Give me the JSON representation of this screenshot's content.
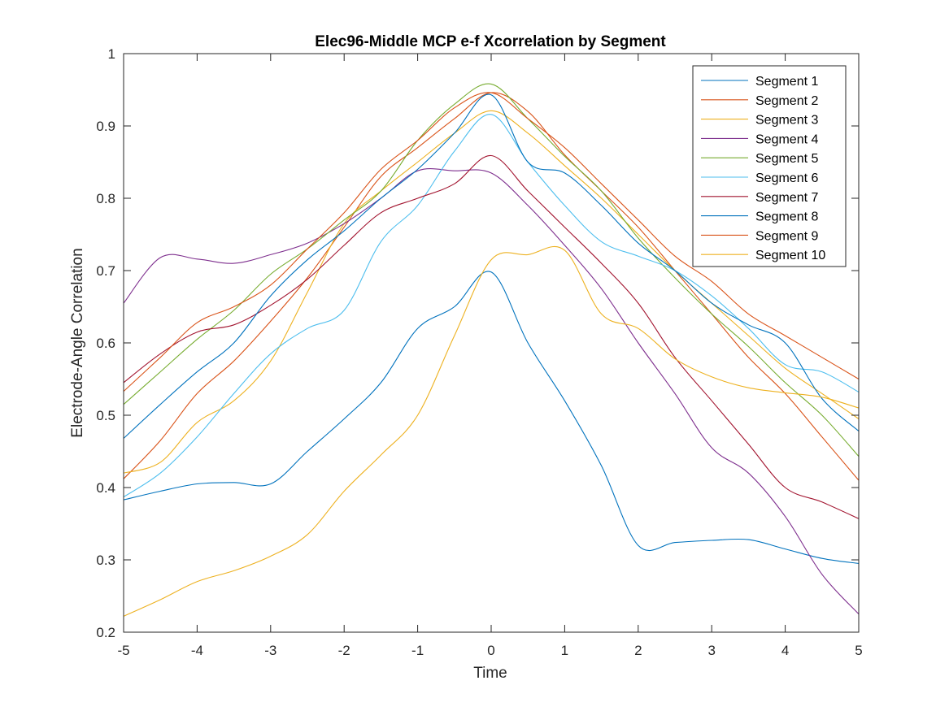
{
  "chart_data": {
    "type": "line",
    "title": "Elec96-Middle MCP e-f Xcorrelation by Segment",
    "xlabel": "Time",
    "ylabel": "Electrode-Angle Correlation",
    "xlim": [
      -5,
      5
    ],
    "ylim": [
      0.2,
      1
    ],
    "xticks": [
      "-5",
      "-4",
      "-3",
      "-2",
      "-1",
      "0",
      "1",
      "2",
      "3",
      "4",
      "5"
    ],
    "yticks": [
      "0.2",
      "0.3",
      "0.4",
      "0.5",
      "0.6",
      "0.7",
      "0.8",
      "0.9",
      "1"
    ],
    "legend_position": "top-right",
    "grid": false,
    "x": [
      -5,
      -4.5,
      -4,
      -3.5,
      -3,
      -2.5,
      -2,
      -1.5,
      -1,
      -0.5,
      0,
      0.5,
      1,
      1.5,
      2,
      2.5,
      3,
      3.5,
      4,
      4.5,
      5
    ],
    "series": [
      {
        "name": "Segment 1",
        "color": "#0072BD",
        "values": [
          0.383,
          0.395,
          0.405,
          0.407,
          0.405,
          0.45,
          0.495,
          0.545,
          0.62,
          0.65,
          0.698,
          0.6,
          0.52,
          0.43,
          0.32,
          0.324,
          0.327,
          0.328,
          0.315,
          0.302,
          0.295
        ]
      },
      {
        "name": "Segment 2",
        "color": "#D95319",
        "values": [
          0.412,
          0.465,
          0.53,
          0.575,
          0.63,
          0.69,
          0.76,
          0.83,
          0.87,
          0.91,
          0.946,
          0.92,
          0.86,
          0.81,
          0.76,
          0.7,
          0.64,
          0.58,
          0.53,
          0.47,
          0.41
        ]
      },
      {
        "name": "Segment 3",
        "color": "#EDB120",
        "values": [
          0.42,
          0.435,
          0.49,
          0.52,
          0.575,
          0.67,
          0.765,
          0.81,
          0.85,
          0.89,
          0.921,
          0.89,
          0.845,
          0.8,
          0.75,
          0.7,
          0.655,
          0.61,
          0.565,
          0.53,
          0.495
        ]
      },
      {
        "name": "Segment 4",
        "color": "#7E2F8E",
        "values": [
          0.655,
          0.718,
          0.716,
          0.71,
          0.722,
          0.738,
          0.765,
          0.8,
          0.838,
          0.838,
          0.835,
          0.79,
          0.735,
          0.675,
          0.6,
          0.53,
          0.455,
          0.42,
          0.36,
          0.28,
          0.225
        ]
      },
      {
        "name": "Segment 5",
        "color": "#77AC30",
        "values": [
          0.515,
          0.56,
          0.605,
          0.645,
          0.695,
          0.73,
          0.77,
          0.81,
          0.88,
          0.93,
          0.958,
          0.91,
          0.858,
          0.81,
          0.745,
          0.69,
          0.64,
          0.595,
          0.545,
          0.5,
          0.443
        ]
      },
      {
        "name": "Segment 6",
        "color": "#4DBEEE",
        "values": [
          0.387,
          0.42,
          0.47,
          0.53,
          0.585,
          0.62,
          0.645,
          0.74,
          0.79,
          0.865,
          0.916,
          0.85,
          0.79,
          0.74,
          0.72,
          0.7,
          0.665,
          0.62,
          0.57,
          0.56,
          0.532
        ]
      },
      {
        "name": "Segment 7",
        "color": "#A2142F",
        "values": [
          0.545,
          0.585,
          0.615,
          0.625,
          0.652,
          0.688,
          0.735,
          0.78,
          0.8,
          0.82,
          0.859,
          0.81,
          0.76,
          0.71,
          0.655,
          0.58,
          0.52,
          0.46,
          0.4,
          0.38,
          0.357
        ]
      },
      {
        "name": "Segment 8",
        "color": "#0072BD",
        "values": [
          0.468,
          0.515,
          0.56,
          0.6,
          0.665,
          0.715,
          0.755,
          0.8,
          0.84,
          0.89,
          0.943,
          0.85,
          0.835,
          0.79,
          0.738,
          0.7,
          0.655,
          0.625,
          0.6,
          0.523,
          0.478
        ]
      },
      {
        "name": "Segment 9",
        "color": "#D95319",
        "values": [
          0.533,
          0.58,
          0.628,
          0.65,
          0.68,
          0.73,
          0.78,
          0.84,
          0.88,
          0.925,
          0.946,
          0.91,
          0.87,
          0.82,
          0.77,
          0.72,
          0.685,
          0.64,
          0.61,
          0.58,
          0.55
        ]
      },
      {
        "name": "Segment 10",
        "color": "#EDB120",
        "values": [
          0.222,
          0.245,
          0.27,
          0.285,
          0.305,
          0.335,
          0.395,
          0.445,
          0.5,
          0.61,
          0.715,
          0.722,
          0.728,
          0.64,
          0.62,
          0.578,
          0.553,
          0.538,
          0.531,
          0.525,
          0.51
        ]
      }
    ]
  }
}
